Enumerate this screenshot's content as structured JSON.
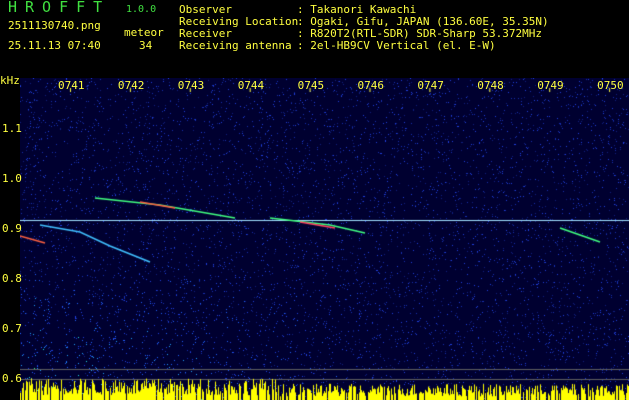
{
  "header": {
    "app_title": "HROFFT",
    "version": "1.0.0",
    "filename": "2511130740.png",
    "datetime": "25.11.13 07:40",
    "meteor_label": "meteor",
    "meteor_count": "34",
    "info": [
      {
        "label": "Observer",
        "value": ": Takanori Kawachi"
      },
      {
        "label": "Receiving Location",
        "value": ": Ogaki, Gifu, JAPAN (136.60E, 35.35N)"
      },
      {
        "label": "Receiver",
        "value": ": R820T2(RTL-SDR) SDR-Sharp 53.372MHz"
      },
      {
        "label": "Receiving antenna",
        "value": ": 2el-HB9CV Vertical (el. E-W)"
      }
    ]
  },
  "chart_data": {
    "type": "heatmap",
    "ylabel": "kHz",
    "x_ticks": [
      "0741",
      "0742",
      "0743",
      "0744",
      "0745",
      "0746",
      "0747",
      "0748",
      "0749",
      "0750"
    ],
    "y_ticks": [
      "1.1",
      "1.0",
      "0.9",
      "0.8",
      "0.7",
      "0.6"
    ],
    "ylim": [
      0.58,
      1.2
    ],
    "colors": {
      "background": "#000040",
      "noise": "#2040c0",
      "carrier": "#c0ffff",
      "label": "#ffff40"
    }
  }
}
